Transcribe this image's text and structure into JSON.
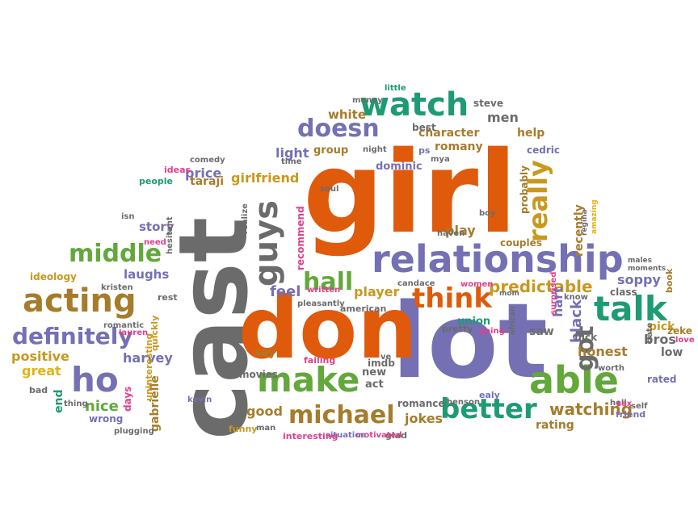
{
  "palette": {
    "orange": "#e05a0c",
    "gray": "#6b6b6b",
    "purple": "#7470b3",
    "green": "#62a83a",
    "teal": "#1e9b73",
    "gold": "#c9981d",
    "brown": "#a67c2b",
    "pink": "#e0408c",
    "yellow": "#e2b20e"
  },
  "words": [
    {
      "text": "cast",
      "color": "gray"
    },
    {
      "text": "girl",
      "color": "orange"
    },
    {
      "text": "lot",
      "color": "purple"
    },
    {
      "text": "don",
      "color": "orange"
    },
    {
      "text": "relationship",
      "color": "purple"
    },
    {
      "text": "watch",
      "color": "teal"
    },
    {
      "text": "talk",
      "color": "teal"
    },
    {
      "text": "make",
      "color": "green"
    },
    {
      "text": "able",
      "color": "green"
    },
    {
      "text": "acting",
      "color": "brown"
    },
    {
      "text": "middle",
      "color": "green"
    },
    {
      "text": "definitely",
      "color": "purple"
    },
    {
      "text": "ho",
      "color": "purple"
    },
    {
      "text": "better",
      "color": "teal"
    },
    {
      "text": "michael",
      "color": "brown"
    },
    {
      "text": "think",
      "color": "orange"
    },
    {
      "text": "hall",
      "color": "green"
    },
    {
      "text": "guys",
      "color": "gray"
    },
    {
      "text": "doesn",
      "color": "purple"
    },
    {
      "text": "really",
      "color": "gold"
    },
    {
      "text": "got",
      "color": "gray"
    },
    {
      "text": "predictable",
      "color": "gold"
    },
    {
      "text": "watching",
      "color": "brown"
    },
    {
      "text": "character",
      "color": "brown"
    },
    {
      "text": "romany",
      "color": "brown"
    },
    {
      "text": "group",
      "color": "brown"
    },
    {
      "text": "light",
      "color": "purple"
    },
    {
      "text": "white",
      "color": "brown"
    },
    {
      "text": "men",
      "color": "gray"
    },
    {
      "text": "help",
      "color": "brown"
    },
    {
      "text": "steve",
      "color": "gray"
    },
    {
      "text": "price",
      "color": "purple"
    },
    {
      "text": "taraji",
      "color": "brown"
    },
    {
      "text": "girlfriend",
      "color": "gold"
    },
    {
      "text": "story",
      "color": "purple"
    },
    {
      "text": "laughs",
      "color": "purple"
    },
    {
      "text": "harvey",
      "color": "purple"
    },
    {
      "text": "positive",
      "color": "gold"
    },
    {
      "text": "great",
      "color": "yellow"
    },
    {
      "text": "nice",
      "color": "green"
    },
    {
      "text": "gabrielle",
      "color": "brown"
    },
    {
      "text": "recommend",
      "color": "pink"
    },
    {
      "text": "feel",
      "color": "purple"
    },
    {
      "text": "player",
      "color": "gold"
    },
    {
      "text": "play",
      "color": "brown"
    },
    {
      "text": "saw",
      "color": "gray"
    },
    {
      "text": "honest",
      "color": "brown"
    },
    {
      "text": "black",
      "color": "purple"
    },
    {
      "text": "hart",
      "color": "purple"
    },
    {
      "text": "bros",
      "color": "gray"
    },
    {
      "text": "low",
      "color": "gray"
    },
    {
      "text": "pick",
      "color": "gold"
    },
    {
      "text": "rating",
      "color": "brown"
    },
    {
      "text": "jokes",
      "color": "brown"
    },
    {
      "text": "good",
      "color": "brown"
    },
    {
      "text": "say",
      "color": "brown"
    },
    {
      "text": "new",
      "color": "gray"
    },
    {
      "text": "act",
      "color": "gray"
    },
    {
      "text": "union",
      "color": "teal"
    },
    {
      "text": "soppy",
      "color": "purple"
    },
    {
      "text": "recently",
      "color": "brown"
    },
    {
      "text": "couples",
      "color": "brown"
    },
    {
      "text": "dominic",
      "color": "purple"
    },
    {
      "text": "cedric",
      "color": "purple"
    },
    {
      "text": "probably",
      "color": "brown"
    },
    {
      "text": "best",
      "color": "gray"
    },
    {
      "text": "money",
      "color": "gray"
    },
    {
      "text": "little",
      "color": "teal"
    },
    {
      "text": "night",
      "color": "gray"
    },
    {
      "text": "ps",
      "color": "purple"
    },
    {
      "text": "mya",
      "color": "gray"
    },
    {
      "text": "comedy",
      "color": "gray"
    },
    {
      "text": "ideas",
      "color": "pink"
    },
    {
      "text": "people",
      "color": "teal"
    },
    {
      "text": "time",
      "color": "gray"
    },
    {
      "text": "realize",
      "color": "gray"
    },
    {
      "text": "soul",
      "color": "gray"
    },
    {
      "text": "boy",
      "color": "gray"
    },
    {
      "text": "regina",
      "color": "gray"
    },
    {
      "text": "amazing",
      "color": "yellow"
    },
    {
      "text": "haven",
      "color": "gray"
    },
    {
      "text": "isn",
      "color": "gray"
    },
    {
      "text": "hesitant",
      "color": "gray"
    },
    {
      "text": "need",
      "color": "pink"
    },
    {
      "text": "ideology",
      "color": "gold"
    },
    {
      "text": "kristen",
      "color": "gray"
    },
    {
      "text": "rest",
      "color": "gray"
    },
    {
      "text": "written",
      "color": "pink"
    },
    {
      "text": "candace",
      "color": "gray"
    },
    {
      "text": "women",
      "color": "pink"
    },
    {
      "text": "pleasantly",
      "color": "gray"
    },
    {
      "text": "american",
      "color": "gray"
    },
    {
      "text": "pretty",
      "color": "gray"
    },
    {
      "text": "going",
      "color": "pink"
    },
    {
      "text": "mom",
      "color": "gray"
    },
    {
      "text": "african",
      "color": "gray"
    },
    {
      "text": "surprised",
      "color": "pink"
    },
    {
      "text": "know",
      "color": "gray"
    },
    {
      "text": "males",
      "color": "gray"
    },
    {
      "text": "moments",
      "color": "gray"
    },
    {
      "text": "class",
      "color": "gray"
    },
    {
      "text": "book",
      "color": "brown"
    },
    {
      "text": "flick",
      "color": "gray"
    },
    {
      "text": "date",
      "color": "gray"
    },
    {
      "text": "zeke",
      "color": "brown"
    },
    {
      "text": "love",
      "color": "pink"
    },
    {
      "text": "rated",
      "color": "purple"
    },
    {
      "text": "hell",
      "color": "gray"
    },
    {
      "text": "sex",
      "color": "pink"
    },
    {
      "text": "self",
      "color": "gray"
    },
    {
      "text": "friend",
      "color": "purple"
    },
    {
      "text": "worth",
      "color": "gray"
    },
    {
      "text": "ealy",
      "color": "purple"
    },
    {
      "text": "ve",
      "color": "gray"
    },
    {
      "text": "imdb",
      "color": "gray"
    },
    {
      "text": "failing",
      "color": "pink"
    },
    {
      "text": "movies",
      "color": "gray"
    },
    {
      "text": "romance",
      "color": "gray"
    },
    {
      "text": "henson",
      "color": "gray"
    },
    {
      "text": "glad",
      "color": "gray"
    },
    {
      "text": "motivated",
      "color": "pink"
    },
    {
      "text": "situation",
      "color": "purple"
    },
    {
      "text": "interesting",
      "color": "pink"
    },
    {
      "text": "man",
      "color": "gray"
    },
    {
      "text": "funny",
      "color": "gold"
    },
    {
      "text": "kevin",
      "color": "purple"
    },
    {
      "text": "plugging",
      "color": "gray"
    },
    {
      "text": "wrong",
      "color": "purple"
    },
    {
      "text": "days",
      "color": "pink"
    },
    {
      "text": "uninteresting",
      "color": "gold"
    },
    {
      "text": "quickly",
      "color": "gold"
    },
    {
      "text": "thing",
      "color": "gray"
    },
    {
      "text": "end",
      "color": "teal"
    },
    {
      "text": "bad",
      "color": "gray"
    },
    {
      "text": "romantic",
      "color": "gray"
    },
    {
      "text": "lauren",
      "color": "pink"
    }
  ]
}
